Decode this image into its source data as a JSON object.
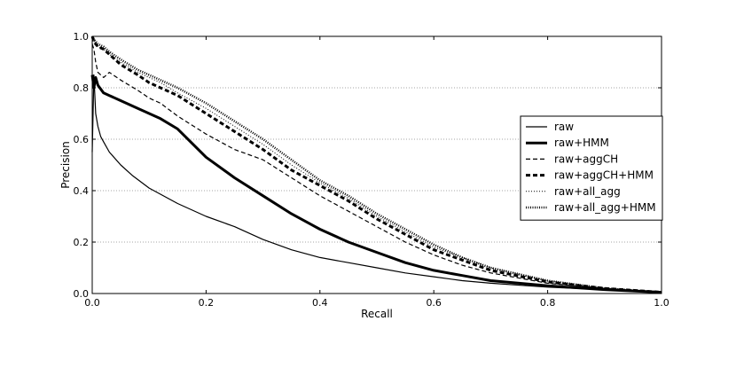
{
  "chart_data": {
    "type": "line",
    "xlabel": "Recall",
    "ylabel": "Precision",
    "xlim": [
      0.0,
      1.0
    ],
    "ylim": [
      0.0,
      1.0
    ],
    "xticks": [
      "0.0",
      "0.2",
      "0.4",
      "0.6",
      "0.8",
      "1.0"
    ],
    "yticks": [
      "0.0",
      "0.2",
      "0.4",
      "0.6",
      "0.8",
      "1.0"
    ],
    "grid": "horizontal dotted",
    "legend_position": "right",
    "series": [
      {
        "name": "raw",
        "style": "solid-thin",
        "x": [
          0.0,
          0.003,
          0.006,
          0.01,
          0.015,
          0.02,
          0.03,
          0.05,
          0.07,
          0.1,
          0.15,
          0.2,
          0.25,
          0.3,
          0.35,
          0.4,
          0.45,
          0.5,
          0.55,
          0.6,
          0.65,
          0.7,
          0.8,
          0.9,
          1.0
        ],
        "y": [
          0.55,
          0.85,
          0.7,
          0.65,
          0.61,
          0.59,
          0.55,
          0.5,
          0.46,
          0.41,
          0.35,
          0.3,
          0.26,
          0.21,
          0.17,
          0.14,
          0.12,
          0.1,
          0.08,
          0.065,
          0.05,
          0.04,
          0.025,
          0.015,
          0.005
        ]
      },
      {
        "name": "raw+HMM",
        "style": "solid-thick",
        "x": [
          0.0,
          0.003,
          0.006,
          0.01,
          0.02,
          0.03,
          0.05,
          0.08,
          0.1,
          0.12,
          0.15,
          0.2,
          0.25,
          0.3,
          0.35,
          0.4,
          0.45,
          0.5,
          0.55,
          0.6,
          0.65,
          0.7,
          0.8,
          0.9,
          1.0
        ],
        "y": [
          0.85,
          0.8,
          0.84,
          0.81,
          0.78,
          0.77,
          0.75,
          0.72,
          0.7,
          0.68,
          0.64,
          0.53,
          0.45,
          0.38,
          0.31,
          0.25,
          0.2,
          0.16,
          0.12,
          0.09,
          0.07,
          0.05,
          0.03,
          0.015,
          0.005
        ]
      },
      {
        "name": "raw+aggCH",
        "style": "dashed-thin",
        "x": [
          0.0,
          0.003,
          0.006,
          0.01,
          0.02,
          0.03,
          0.05,
          0.08,
          0.1,
          0.12,
          0.15,
          0.2,
          0.25,
          0.3,
          0.35,
          0.4,
          0.45,
          0.5,
          0.55,
          0.6,
          0.65,
          0.7,
          0.8,
          0.9,
          1.0
        ],
        "y": [
          0.97,
          0.95,
          0.9,
          0.86,
          0.84,
          0.86,
          0.83,
          0.79,
          0.76,
          0.74,
          0.69,
          0.62,
          0.56,
          0.52,
          0.45,
          0.38,
          0.32,
          0.26,
          0.2,
          0.15,
          0.11,
          0.08,
          0.04,
          0.02,
          0.005
        ]
      },
      {
        "name": "raw+aggCH+HMM",
        "style": "dashed-thick",
        "x": [
          0.0,
          0.003,
          0.006,
          0.01,
          0.02,
          0.03,
          0.05,
          0.08,
          0.1,
          0.12,
          0.15,
          0.2,
          0.25,
          0.3,
          0.35,
          0.4,
          0.45,
          0.5,
          0.55,
          0.6,
          0.65,
          0.7,
          0.8,
          0.9,
          1.0
        ],
        "y": [
          1.0,
          0.98,
          0.97,
          0.96,
          0.95,
          0.93,
          0.89,
          0.85,
          0.82,
          0.8,
          0.77,
          0.7,
          0.63,
          0.56,
          0.48,
          0.42,
          0.36,
          0.29,
          0.23,
          0.17,
          0.13,
          0.09,
          0.045,
          0.02,
          0.005
        ]
      },
      {
        "name": "raw+all_agg",
        "style": "dotted-thin",
        "x": [
          0.0,
          0.003,
          0.006,
          0.01,
          0.02,
          0.03,
          0.05,
          0.08,
          0.1,
          0.12,
          0.15,
          0.2,
          0.25,
          0.3,
          0.35,
          0.4,
          0.45,
          0.5,
          0.55,
          0.6,
          0.65,
          0.7,
          0.8,
          0.9,
          1.0
        ],
        "y": [
          0.97,
          0.99,
          0.97,
          0.96,
          0.95,
          0.93,
          0.9,
          0.86,
          0.84,
          0.82,
          0.78,
          0.72,
          0.65,
          0.58,
          0.5,
          0.43,
          0.37,
          0.3,
          0.24,
          0.18,
          0.14,
          0.1,
          0.05,
          0.02,
          0.005
        ]
      },
      {
        "name": "raw+all_agg+HMM",
        "style": "dotted-thick",
        "x": [
          0.0,
          0.003,
          0.006,
          0.01,
          0.02,
          0.03,
          0.05,
          0.08,
          0.1,
          0.12,
          0.15,
          0.2,
          0.25,
          0.3,
          0.35,
          0.4,
          0.45,
          0.5,
          0.55,
          0.6,
          0.65,
          0.7,
          0.8,
          0.9,
          1.0
        ],
        "y": [
          1.0,
          0.99,
          0.98,
          0.97,
          0.96,
          0.94,
          0.91,
          0.87,
          0.85,
          0.83,
          0.8,
          0.74,
          0.67,
          0.6,
          0.52,
          0.44,
          0.38,
          0.31,
          0.25,
          0.19,
          0.14,
          0.1,
          0.05,
          0.02,
          0.005
        ]
      }
    ]
  }
}
